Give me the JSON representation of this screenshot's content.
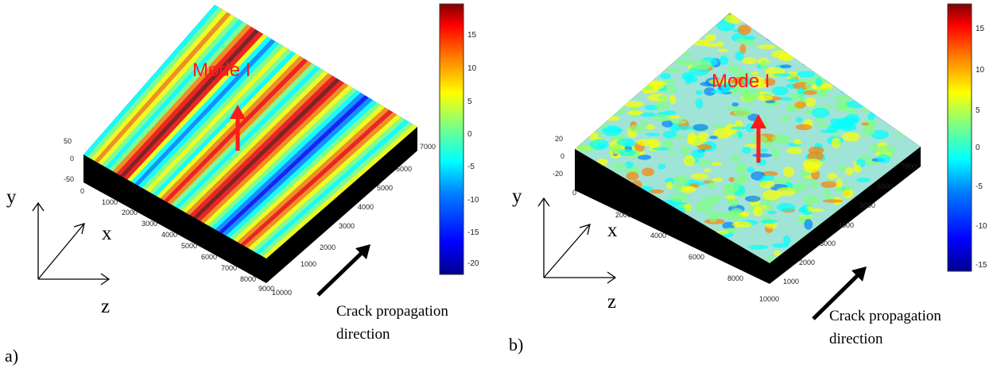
{
  "colors": {
    "jet": [
      "#00008f",
      "#0000ff",
      "#0080ff",
      "#00ffff",
      "#80ff80",
      "#ffff00",
      "#ff8000",
      "#ff0000",
      "#800000"
    ],
    "mode_arrow": "#ff1a1a",
    "black_base": "#000000"
  },
  "panels": [
    {
      "label": "a)",
      "mode_label": "Mode I",
      "crack_label_lines": [
        "Crack propagation",
        "direction"
      ],
      "coord_labels": {
        "y": "y",
        "x": "x",
        "z": "z"
      },
      "z_ticks": [
        "50",
        "0",
        "-50"
      ],
      "x_ticks": [
        "0",
        "1000",
        "2000",
        "3000",
        "4000",
        "5000",
        "6000",
        "7000",
        "8000",
        "9000",
        "10000"
      ],
      "y_ticks": [
        "1000",
        "2000",
        "3000",
        "4000",
        "5000",
        "6000",
        "7000"
      ],
      "colorbar_ticks": [
        "15",
        "10",
        "5",
        "0",
        "-5",
        "-10",
        "-15",
        "-20"
      ]
    },
    {
      "label": "b)",
      "mode_label": "Mode I",
      "crack_label_lines": [
        "Crack propagation",
        "direction"
      ],
      "coord_labels": {
        "y": "y",
        "x": "x",
        "z": "z"
      },
      "z_ticks": [
        "20",
        "0",
        "-20"
      ],
      "x_ticks": [
        "0",
        "2000",
        "4000",
        "6000",
        "8000",
        "10000"
      ],
      "y_ticks": [
        "1000",
        "2000",
        "3000",
        "4000",
        "5000",
        "6000",
        "7000"
      ],
      "colorbar_ticks": [
        "15",
        "10",
        "5",
        "0",
        "-5",
        "-10",
        "-15"
      ]
    }
  ]
}
